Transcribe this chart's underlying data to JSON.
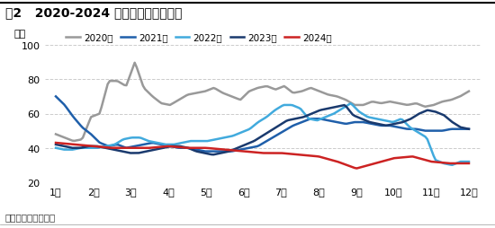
{
  "title": "图2   2020-2024 年江苏甲醇库存对比",
  "ylabel": "万吨",
  "source_text": "数据来源：卓创资讯",
  "x_labels": [
    "1月",
    "2月",
    "3月",
    "4月",
    "5月",
    "6月",
    "7月",
    "8月",
    "9月",
    "10月",
    "11月",
    "12月"
  ],
  "ylim": [
    20,
    100
  ],
  "yticks": [
    20,
    40,
    60,
    80,
    100
  ],
  "background_color": "#ffffff",
  "series": {
    "2020年": {
      "color": "#999999",
      "linewidth": 1.8,
      "data": [
        48,
        46,
        44,
        45,
        58,
        60,
        79,
        79,
        76,
        90,
        75,
        70,
        66,
        65,
        68,
        71,
        72,
        73,
        75,
        72,
        70,
        68,
        73,
        75,
        76,
        74,
        76,
        72,
        73,
        75,
        73,
        71,
        70,
        68,
        65,
        65,
        67,
        66,
        67,
        66,
        65,
        66,
        64,
        65,
        67,
        68,
        70,
        73
      ]
    },
    "2021年": {
      "color": "#1f5faa",
      "linewidth": 1.8,
      "data": [
        70,
        65,
        58,
        52,
        48,
        43,
        41,
        42,
        40,
        41,
        42,
        43,
        42,
        41,
        40,
        40,
        39,
        38,
        38,
        38,
        38,
        39,
        40,
        41,
        44,
        47,
        50,
        53,
        55,
        57,
        57,
        56,
        55,
        54,
        55,
        55,
        54,
        53,
        53,
        52,
        51,
        51,
        50,
        50,
        50,
        51,
        51,
        51
      ]
    },
    "2022年": {
      "color": "#41aadd",
      "linewidth": 1.8,
      "data": [
        40,
        39,
        39,
        40,
        40,
        40,
        41,
        42,
        45,
        46,
        46,
        44,
        43,
        42,
        42,
        43,
        44,
        44,
        44,
        45,
        46,
        47,
        49,
        51,
        55,
        58,
        62,
        65,
        65,
        63,
        57,
        56,
        58,
        60,
        63,
        66,
        61,
        58,
        57,
        56,
        55,
        57,
        52,
        49,
        46,
        33,
        31,
        30,
        32,
        32
      ]
    },
    "2023年": {
      "color": "#1a3a6e",
      "linewidth": 1.8,
      "data": [
        42,
        41,
        40,
        40,
        41,
        41,
        40,
        39,
        38,
        37,
        37,
        38,
        39,
        40,
        41,
        41,
        40,
        38,
        37,
        36,
        37,
        38,
        40,
        42,
        44,
        47,
        50,
        53,
        56,
        57,
        58,
        60,
        62,
        63,
        64,
        65,
        59,
        57,
        55,
        54,
        53,
        54,
        55,
        57,
        60,
        62,
        61,
        59,
        55,
        52,
        51
      ]
    },
    "2024年": {
      "color": "#cc2222",
      "linewidth": 1.8,
      "data": [
        43,
        42,
        41,
        40,
        40,
        40,
        41,
        40,
        40,
        39,
        38,
        37,
        37,
        36,
        35,
        32,
        28,
        31,
        34,
        35,
        32,
        31,
        31
      ]
    }
  }
}
